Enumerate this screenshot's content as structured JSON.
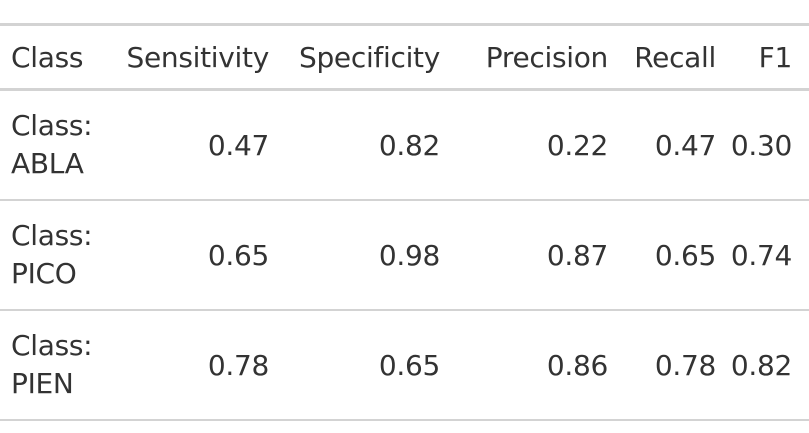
{
  "chart_data": {
    "type": "table",
    "columns": [
      "Class",
      "Sensitivity",
      "Specificity",
      "Precision",
      "Recall",
      "F1"
    ],
    "rows": [
      {
        "class_line1": "Class:",
        "class_line2": "ABLA",
        "sensitivity": "0.47",
        "specificity": "0.82",
        "precision": "0.22",
        "recall": "0.47",
        "f1": "0.30"
      },
      {
        "class_line1": "Class:",
        "class_line2": "PICO",
        "sensitivity": "0.65",
        "specificity": "0.98",
        "precision": "0.87",
        "recall": "0.65",
        "f1": "0.74"
      },
      {
        "class_line1": "Class:",
        "class_line2": "PIEN",
        "sensitivity": "0.78",
        "specificity": "0.65",
        "precision": "0.86",
        "recall": "0.78",
        "f1": "0.82"
      }
    ]
  }
}
